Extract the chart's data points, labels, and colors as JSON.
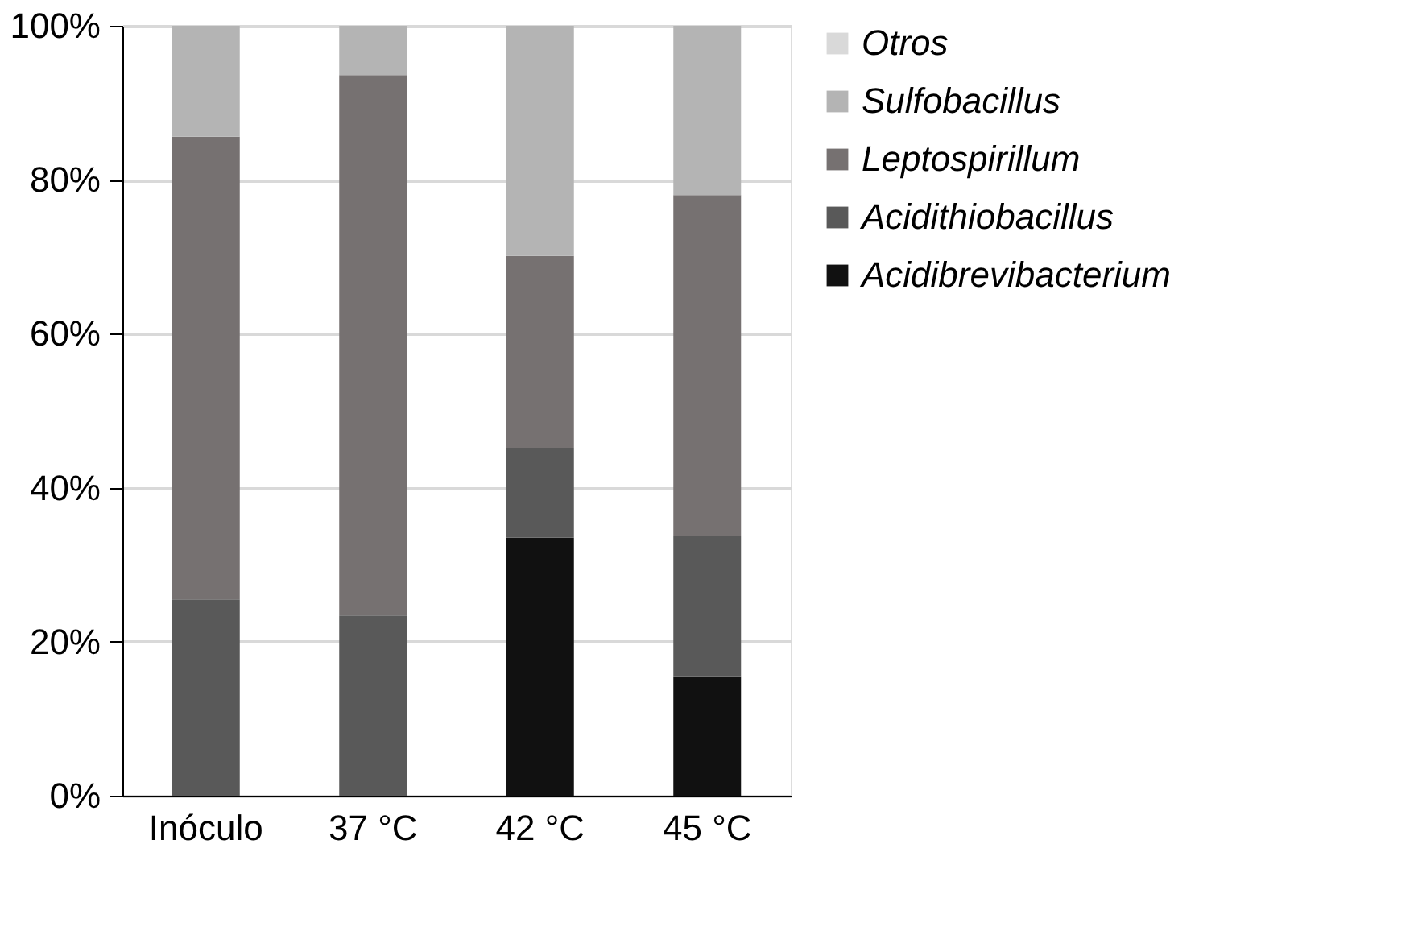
{
  "chart_data": {
    "type": "bar",
    "stacked": true,
    "categories": [
      "Inóculo",
      "37 °C",
      "42 °C",
      "45 °C"
    ],
    "series": [
      {
        "name": "Acidibrevibacterium",
        "color": "#111111",
        "values": [
          0,
          0,
          33.5,
          15.5
        ]
      },
      {
        "name": "Acidithiobacillus",
        "color": "#595959",
        "values": [
          25.5,
          23.4,
          11.7,
          18.2
        ]
      },
      {
        "name": "Leptospirillum",
        "color": "#767171",
        "values": [
          60.1,
          70.2,
          24.9,
          44.3
        ]
      },
      {
        "name": "Sulfobacillus",
        "color": "#b4b4b4",
        "values": [
          14.4,
          6.4,
          29.9,
          22.0
        ]
      },
      {
        "name": "Otros",
        "color": "#d9d9d9",
        "values": [
          0,
          0,
          0,
          0
        ]
      }
    ],
    "ylim": [
      0,
      100
    ],
    "yticks": [
      {
        "value": 0,
        "label": "0%"
      },
      {
        "value": 20,
        "label": "20%"
      },
      {
        "value": 40,
        "label": "40%"
      },
      {
        "value": 60,
        "label": "60%"
      },
      {
        "value": 80,
        "label": "80%"
      },
      {
        "value": 100,
        "label": "100%"
      }
    ],
    "grid": "y",
    "legend": "right"
  }
}
